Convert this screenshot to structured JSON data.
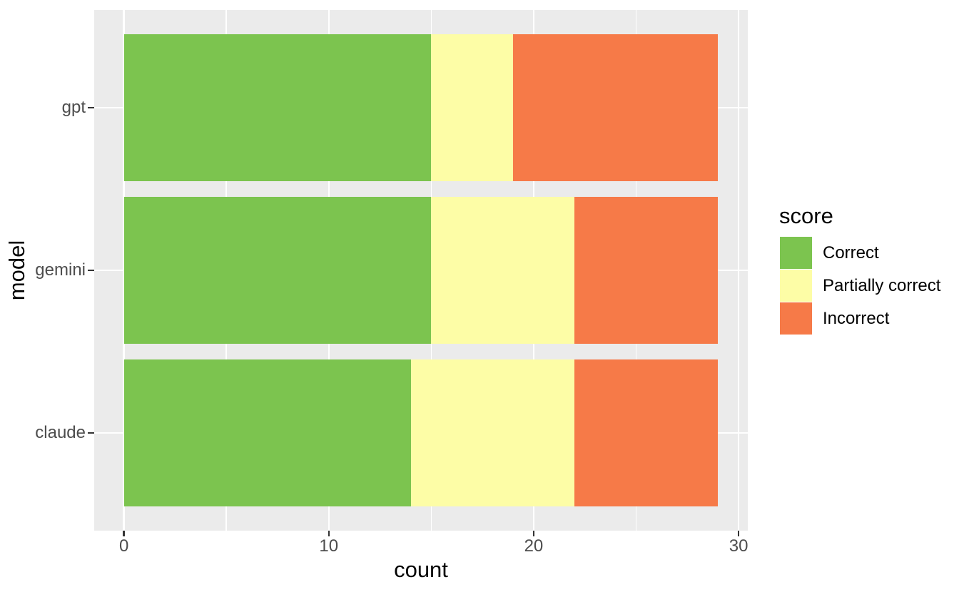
{
  "chart_data": {
    "type": "bar",
    "orientation": "horizontal",
    "stacked": true,
    "xlabel": "count",
    "ylabel": "model",
    "legend_title": "score",
    "legend_position": "right",
    "categories": [
      "gpt",
      "gemini",
      "claude"
    ],
    "series": [
      {
        "name": "Correct",
        "color": "#7cc44f",
        "values": [
          15,
          15,
          14
        ]
      },
      {
        "name": "Partially correct",
        "color": "#fdfda6",
        "values": [
          4,
          7,
          8
        ]
      },
      {
        "name": "Incorrect",
        "color": "#f67a48",
        "values": [
          10,
          7,
          7
        ]
      }
    ],
    "totals": [
      29,
      29,
      29
    ],
    "x_ticks": [
      0,
      10,
      20,
      30
    ],
    "x_tick_labels": [
      "0",
      "10",
      "20",
      "30"
    ],
    "x_minor_ticks": [
      5,
      15,
      25
    ],
    "xlim": [
      0,
      30
    ],
    "grid": true,
    "theme": {
      "panel_background": "#ebebeb",
      "grid_color": "#ffffff",
      "tick_mark_color": "#333333",
      "tick_label_color": "#4d4d4d",
      "title_color": "#000000"
    }
  }
}
